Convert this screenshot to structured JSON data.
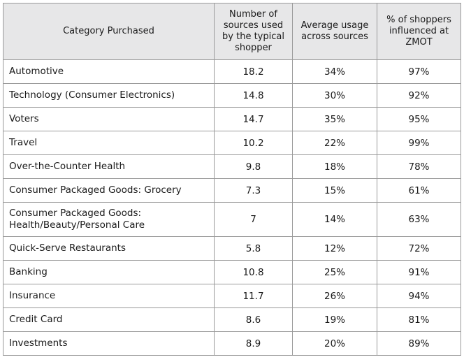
{
  "headers": [
    "Category Purchased",
    "Number of sources used by the typical shopper",
    "Average usage across sources",
    "% of shoppers influenced at ZMOT"
  ],
  "rows": [
    {
      "category": "Automotive",
      "sources": "18.2",
      "usage": "34%",
      "influenced": "97%"
    },
    {
      "category": "Technology (Consumer Electronics)",
      "sources": "14.8",
      "usage": "30%",
      "influenced": "92%"
    },
    {
      "category": "Voters",
      "sources": "14.7",
      "usage": "35%",
      "influenced": "95%"
    },
    {
      "category": "Travel",
      "sources": "10.2",
      "usage": "22%",
      "influenced": "99%"
    },
    {
      "category": "Over-the-Counter Health",
      "sources": "9.8",
      "usage": "18%",
      "influenced": "78%"
    },
    {
      "category": "Consumer Packaged Goods: Grocery",
      "sources": "7.3",
      "usage": "15%",
      "influenced": "61%"
    },
    {
      "category": "Consumer Packaged Goods:",
      "category_line2": "Health/Beauty/Personal Care",
      "sources": "7",
      "usage": "14%",
      "influenced": "63%"
    },
    {
      "category": "Quick-Serve Restaurants",
      "sources": "5.8",
      "usage": "12%",
      "influenced": "72%"
    },
    {
      "category": "Banking",
      "sources": "10.8",
      "usage": "25%",
      "influenced": "91%"
    },
    {
      "category": "Insurance",
      "sources": "11.7",
      "usage": "26%",
      "influenced": "94%"
    },
    {
      "category": "Credit Card",
      "sources": "8.6",
      "usage": "19%",
      "influenced": "81%"
    },
    {
      "category": "Investments",
      "sources": "8.9",
      "usage": "20%",
      "influenced": "89%"
    }
  ]
}
